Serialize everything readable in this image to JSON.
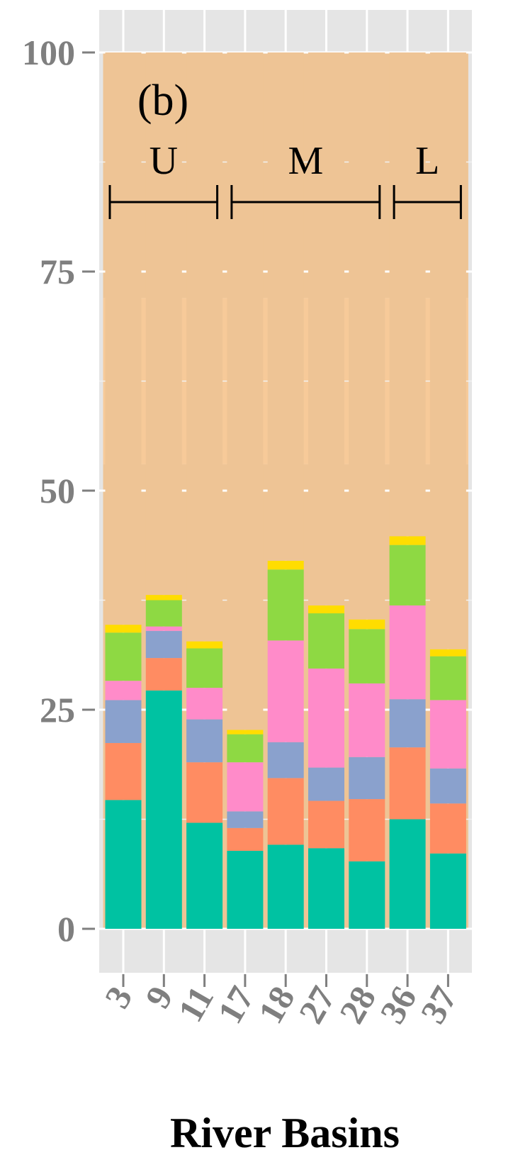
{
  "chart_data": {
    "type": "stacked-bar",
    "xlabel": "River Basins",
    "ylabel": "",
    "ylim": [
      0,
      100
    ],
    "yticks": [
      0,
      25,
      50,
      75,
      100
    ],
    "categories": [
      "3",
      "9",
      "11",
      "17",
      "18",
      "27",
      "28",
      "36",
      "37"
    ],
    "background_bands": [
      {
        "from": 0,
        "to": 53,
        "color": "#eec495"
      },
      {
        "from": 53,
        "to": 72,
        "color": "#f7ca99"
      },
      {
        "from": 72,
        "to": 100,
        "color": "#eec495"
      }
    ],
    "series": [
      {
        "color": "#00c2a2",
        "values": [
          14.7,
          27.2,
          12.1,
          8.9,
          9.6,
          9.2,
          7.7,
          12.5,
          8.6
        ]
      },
      {
        "color": "#ff8c62",
        "values": [
          6.5,
          3.7,
          6.9,
          2.6,
          7.6,
          5.4,
          7.1,
          8.2,
          5.7
        ]
      },
      {
        "color": "#8aa1cd",
        "values": [
          4.9,
          3.1,
          4.9,
          1.9,
          4.1,
          3.8,
          4.8,
          5.5,
          4.0
        ]
      },
      {
        "color": "#ff8bc9",
        "values": [
          2.2,
          0.5,
          3.6,
          5.6,
          11.6,
          11.3,
          8.4,
          10.7,
          7.8
        ]
      },
      {
        "color": "#8ed943",
        "values": [
          5.5,
          3.0,
          4.5,
          3.2,
          8.1,
          6.3,
          6.2,
          6.9,
          5.0
        ]
      },
      {
        "color": "#ffdd00",
        "values": [
          0.9,
          0.6,
          0.8,
          0.5,
          1.0,
          0.9,
          1.1,
          1.0,
          0.8
        ]
      },
      {
        "color": "#eec495",
        "values": [
          65.3,
          61.9,
          67.2,
          77.3,
          58.0,
          63.1,
          64.7,
          55.2,
          68.1
        ]
      }
    ],
    "annotations": {
      "panel_label": "(b)",
      "groups": [
        {
          "label": "U",
          "from": "3",
          "to": "11"
        },
        {
          "label": "M",
          "from": "17",
          "to": "28"
        },
        {
          "label": "L",
          "from": "36",
          "to": "37"
        }
      ]
    },
    "grid": true,
    "legend": "none"
  }
}
